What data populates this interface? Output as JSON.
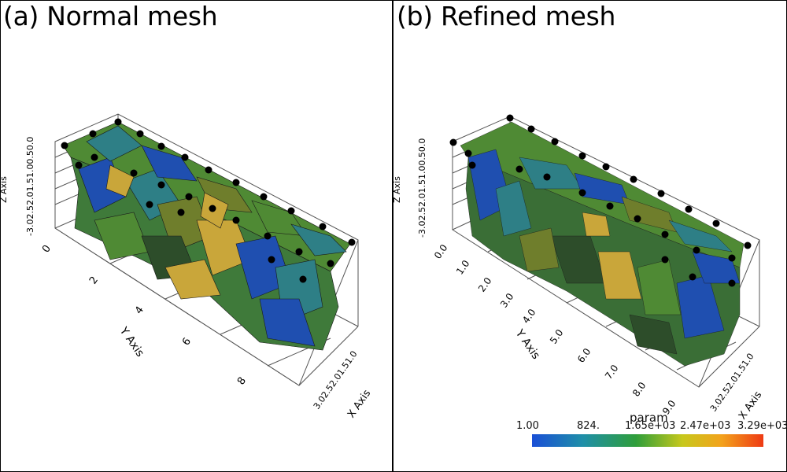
{
  "panels": [
    {
      "title": "(a) Normal mesh",
      "z_axis_title": "Z Axis",
      "z_ticks": "-3.02.52.01.51.00.50.0",
      "y_axis_title": "Y Axis",
      "y_ticks": [
        "0",
        "2",
        "4",
        "6",
        "8"
      ],
      "x_axis_title": "X Axis",
      "x_ticks": "3.02.52.01.51.0"
    },
    {
      "title": "(b) Refined mesh",
      "z_axis_title": "Z Axis",
      "z_ticks": "-3.02.52.01.51.00.50.0",
      "y_axis_title": "Y Axis",
      "y_ticks": [
        "0.0",
        "1.0",
        "2.0",
        "3.0",
        "4.0",
        "5.0",
        "6.0",
        "7.0",
        "8.0",
        "9.0"
      ],
      "x_axis_title": "X Axis",
      "x_ticks": "3.02.52.01.51.0"
    }
  ],
  "colorbar": {
    "title": "param",
    "ticks": [
      "1.00",
      "824.",
      "1.65e+03",
      "2.47e+03",
      "3.29e+03"
    ]
  },
  "colors": {
    "blue": "#1f4fb0",
    "teal": "#2e7f86",
    "green": "#4f8a34",
    "olive": "#6f7e2c",
    "yellow": "#c9a63a",
    "dark": "#2d4d2a"
  }
}
